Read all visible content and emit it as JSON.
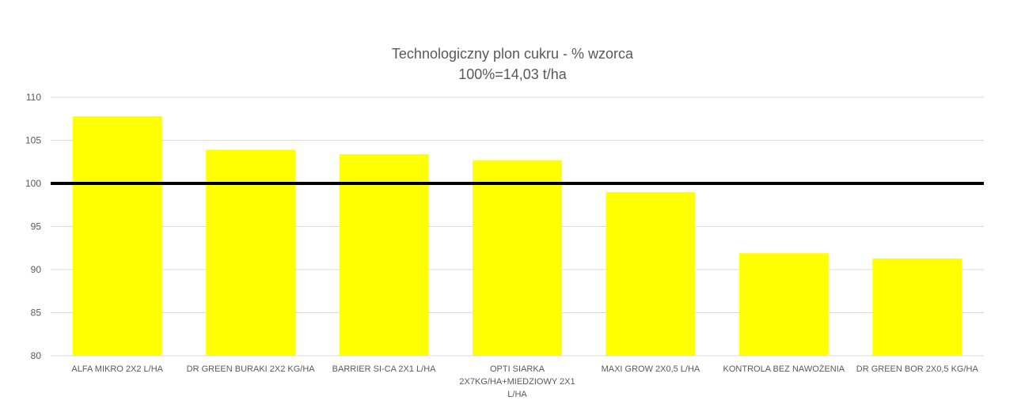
{
  "chart_data": {
    "type": "bar",
    "title": "Technologiczny plon cukru - % wzorca",
    "subtitle": "100%=14,03 t/ha",
    "categories": [
      [
        "ALFA MIKRO 2X2 L/HA"
      ],
      [
        "DR GREEN BURAKI 2X2 KG/HA"
      ],
      [
        "BARRIER SI-CA 2X1 L/HA"
      ],
      [
        "OPTI SIARKA",
        "2X7KG/HA+MIEDZIOWY 2X1",
        "L/HA"
      ],
      [
        "MAXI GROW 2X0,5 L/HA"
      ],
      [
        "KONTROLA BEZ NAWOŻENIA"
      ],
      [
        "DR GREEN BOR 2X0,5 KG/HA"
      ]
    ],
    "values": [
      107.8,
      103.9,
      103.4,
      102.7,
      99.0,
      91.9,
      91.3
    ],
    "reference_line": 100,
    "ylim": [
      80,
      110
    ],
    "yticks": [
      80,
      85,
      90,
      95,
      100,
      105,
      110
    ],
    "grid": true,
    "legend": "none",
    "colors": {
      "bar": "#ffff00",
      "reference": "#000000",
      "grid": "#d9d9d9",
      "text": "#595959"
    }
  }
}
